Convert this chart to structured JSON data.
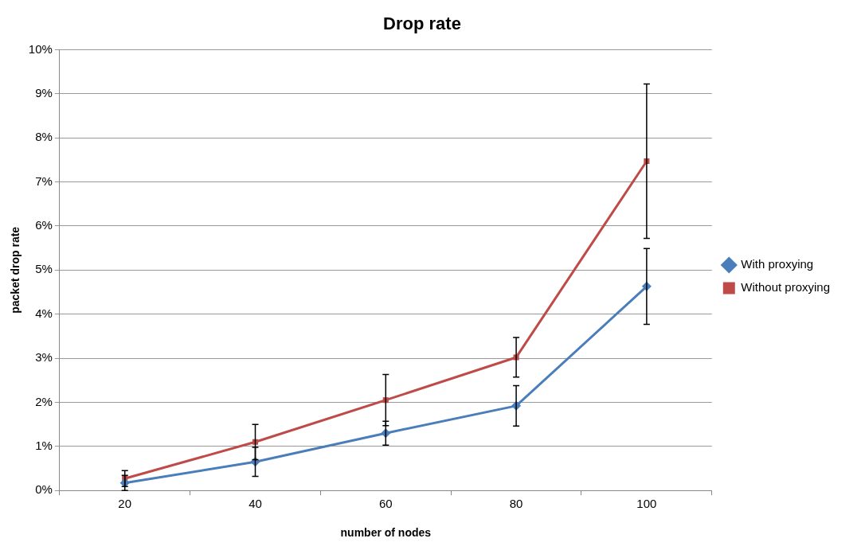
{
  "chart_data": {
    "type": "line",
    "title": "Drop rate",
    "xlabel": "number of nodes",
    "ylabel": "packet drop rate",
    "categories": [
      "20",
      "40",
      "60",
      "80",
      "100"
    ],
    "series": [
      {
        "name": "With proxying",
        "color": "#4a7ebb",
        "marker": "diamond",
        "values": [
          0.17,
          0.65,
          1.3,
          1.92,
          4.63
        ],
        "errors": [
          0.17,
          0.33,
          0.27,
          0.46,
          0.86
        ]
      },
      {
        "name": "Without proxying",
        "color": "#be4b48",
        "marker": "square",
        "values": [
          0.27,
          1.1,
          2.05,
          3.02,
          7.47
        ],
        "errors": [
          0.18,
          0.4,
          0.58,
          0.45,
          1.75
        ]
      }
    ],
    "ylim": [
      0,
      10
    ],
    "yticks": [
      {
        "value": 0,
        "label": "0%"
      },
      {
        "value": 1,
        "label": "1%"
      },
      {
        "value": 2,
        "label": "2%"
      },
      {
        "value": 3,
        "label": "3%"
      },
      {
        "value": 4,
        "label": "4%"
      },
      {
        "value": 5,
        "label": "5%"
      },
      {
        "value": 6,
        "label": "6%"
      },
      {
        "value": 7,
        "label": "7%"
      },
      {
        "value": 8,
        "label": "8%"
      },
      {
        "value": 9,
        "label": "9%"
      },
      {
        "value": 10,
        "label": "10%"
      }
    ],
    "grid": "y",
    "legend": "right",
    "line_style": "solid"
  }
}
